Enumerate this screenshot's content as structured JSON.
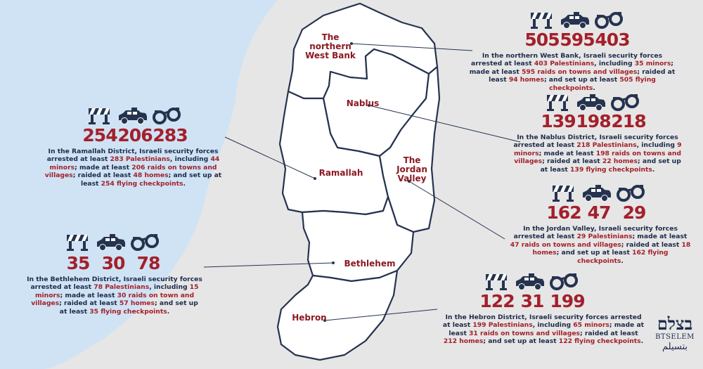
{
  "colors": {
    "background": "#e6e6e6",
    "sea": "#cfe3f4",
    "map_fill": "#ffffff",
    "map_stroke": "#25334f",
    "icon": "#25334f",
    "number": "#a3202b",
    "text": "#1d2b4a",
    "highlight": "#a3202b"
  },
  "icon_names": [
    "checkpoint-barrier-icon",
    "military-vehicle-icon",
    "handcuffs-icon"
  ],
  "regions": [
    {
      "id": "northern",
      "label": "The northern West Bank"
    },
    {
      "id": "nablus",
      "label": "Nablus"
    },
    {
      "id": "ramallah",
      "label": "Ramallah"
    },
    {
      "id": "jordan",
      "label": "The Jordan Valley"
    },
    {
      "id": "bethlehem",
      "label": "Bethlehem"
    },
    {
      "id": "hebron",
      "label": "Hebron"
    }
  ],
  "panels": [
    {
      "id": "northern",
      "checkpoints": "505",
      "raids": "595",
      "arrests": "403",
      "text": [
        {
          "t": "In the northern West Bank, Israeli security forces arrested at least "
        },
        {
          "t": "403 Palestinians",
          "h": true
        },
        {
          "t": ", including "
        },
        {
          "t": "35 minors",
          "h": true
        },
        {
          "t": "; made at least "
        },
        {
          "t": "595 raids on towns and villages",
          "h": true
        },
        {
          "t": "; raided at least "
        },
        {
          "t": "94 homes",
          "h": true
        },
        {
          "t": "; and set up at least "
        },
        {
          "t": "505 flying checkpoints",
          "h": true
        },
        {
          "t": "."
        }
      ]
    },
    {
      "id": "nablus",
      "checkpoints": "139",
      "raids": "198",
      "arrests": "218",
      "text": [
        {
          "t": "In the Nablus District, Israeli security forces arrested at least "
        },
        {
          "t": "218 Palestinians",
          "h": true
        },
        {
          "t": ", including "
        },
        {
          "t": "9 minors",
          "h": true
        },
        {
          "t": "; made at least "
        },
        {
          "t": "198 raids on towns and villages",
          "h": true
        },
        {
          "t": "; raided at least "
        },
        {
          "t": "22 homes",
          "h": true
        },
        {
          "t": "; and set up at least "
        },
        {
          "t": "139 flying checkpoints",
          "h": true
        },
        {
          "t": "."
        }
      ]
    },
    {
      "id": "ramallah",
      "checkpoints": "254",
      "raids": "206",
      "arrests": "283",
      "text": [
        {
          "t": "In the Ramallah District, Israeli security forces arrested at least "
        },
        {
          "t": "283 Palestinians",
          "h": true
        },
        {
          "t": ", including "
        },
        {
          "t": "44 minors",
          "h": true
        },
        {
          "t": "; made at least "
        },
        {
          "t": "206 raids on towns and villages",
          "h": true
        },
        {
          "t": "; raided at least "
        },
        {
          "t": "48 homes",
          "h": true
        },
        {
          "t": "; and set up at least "
        },
        {
          "t": "254 flying checkpoints",
          "h": true
        },
        {
          "t": "."
        }
      ]
    },
    {
      "id": "jordan",
      "checkpoints": "162",
      "raids": "47",
      "arrests": "29",
      "text": [
        {
          "t": "In the Jordan Valley, Israeli security forces arrested at least "
        },
        {
          "t": "29 Palestinians",
          "h": true
        },
        {
          "t": "; made at least "
        },
        {
          "t": "47 raids on towns and villages",
          "h": true
        },
        {
          "t": "; raided at least "
        },
        {
          "t": "18 homes",
          "h": true
        },
        {
          "t": "; and set up at least "
        },
        {
          "t": "162 flying checkpoints",
          "h": true
        },
        {
          "t": "."
        }
      ]
    },
    {
      "id": "bethlehem",
      "checkpoints": "35",
      "raids": "30",
      "arrests": "78",
      "text": [
        {
          "t": "In the Bethlehem District, Israeli security forces arrested at least "
        },
        {
          "t": "78 Palestinians",
          "h": true
        },
        {
          "t": ", including "
        },
        {
          "t": "15 minors",
          "h": true
        },
        {
          "t": "; made at least "
        },
        {
          "t": "30 raids on town and villages",
          "h": true
        },
        {
          "t": "; raided at least "
        },
        {
          "t": "57 homes",
          "h": true
        },
        {
          "t": "; and set up at least "
        },
        {
          "t": "35 flying checkpoints",
          "h": true
        },
        {
          "t": "."
        }
      ]
    },
    {
      "id": "hebron",
      "checkpoints": "122",
      "raids": "31",
      "arrests": "199",
      "text": [
        {
          "t": "In the Hebron District, Israeli security forces arrested at least "
        },
        {
          "t": "199 Palestinians",
          "h": true
        },
        {
          "t": ", including "
        },
        {
          "t": "65 minors",
          "h": true
        },
        {
          "t": "; made at least "
        },
        {
          "t": "31 raids on towns and villages",
          "h": true
        },
        {
          "t": "; raided at least "
        },
        {
          "t": "212 homes",
          "h": true
        },
        {
          "t": "; and set up at least "
        },
        {
          "t": "122 flying checkpoints",
          "h": true
        },
        {
          "t": "."
        }
      ]
    }
  ],
  "logo": {
    "hebrew": "בצלם",
    "latin": "BTSELEM",
    "arabic": "بتسيلم"
  }
}
